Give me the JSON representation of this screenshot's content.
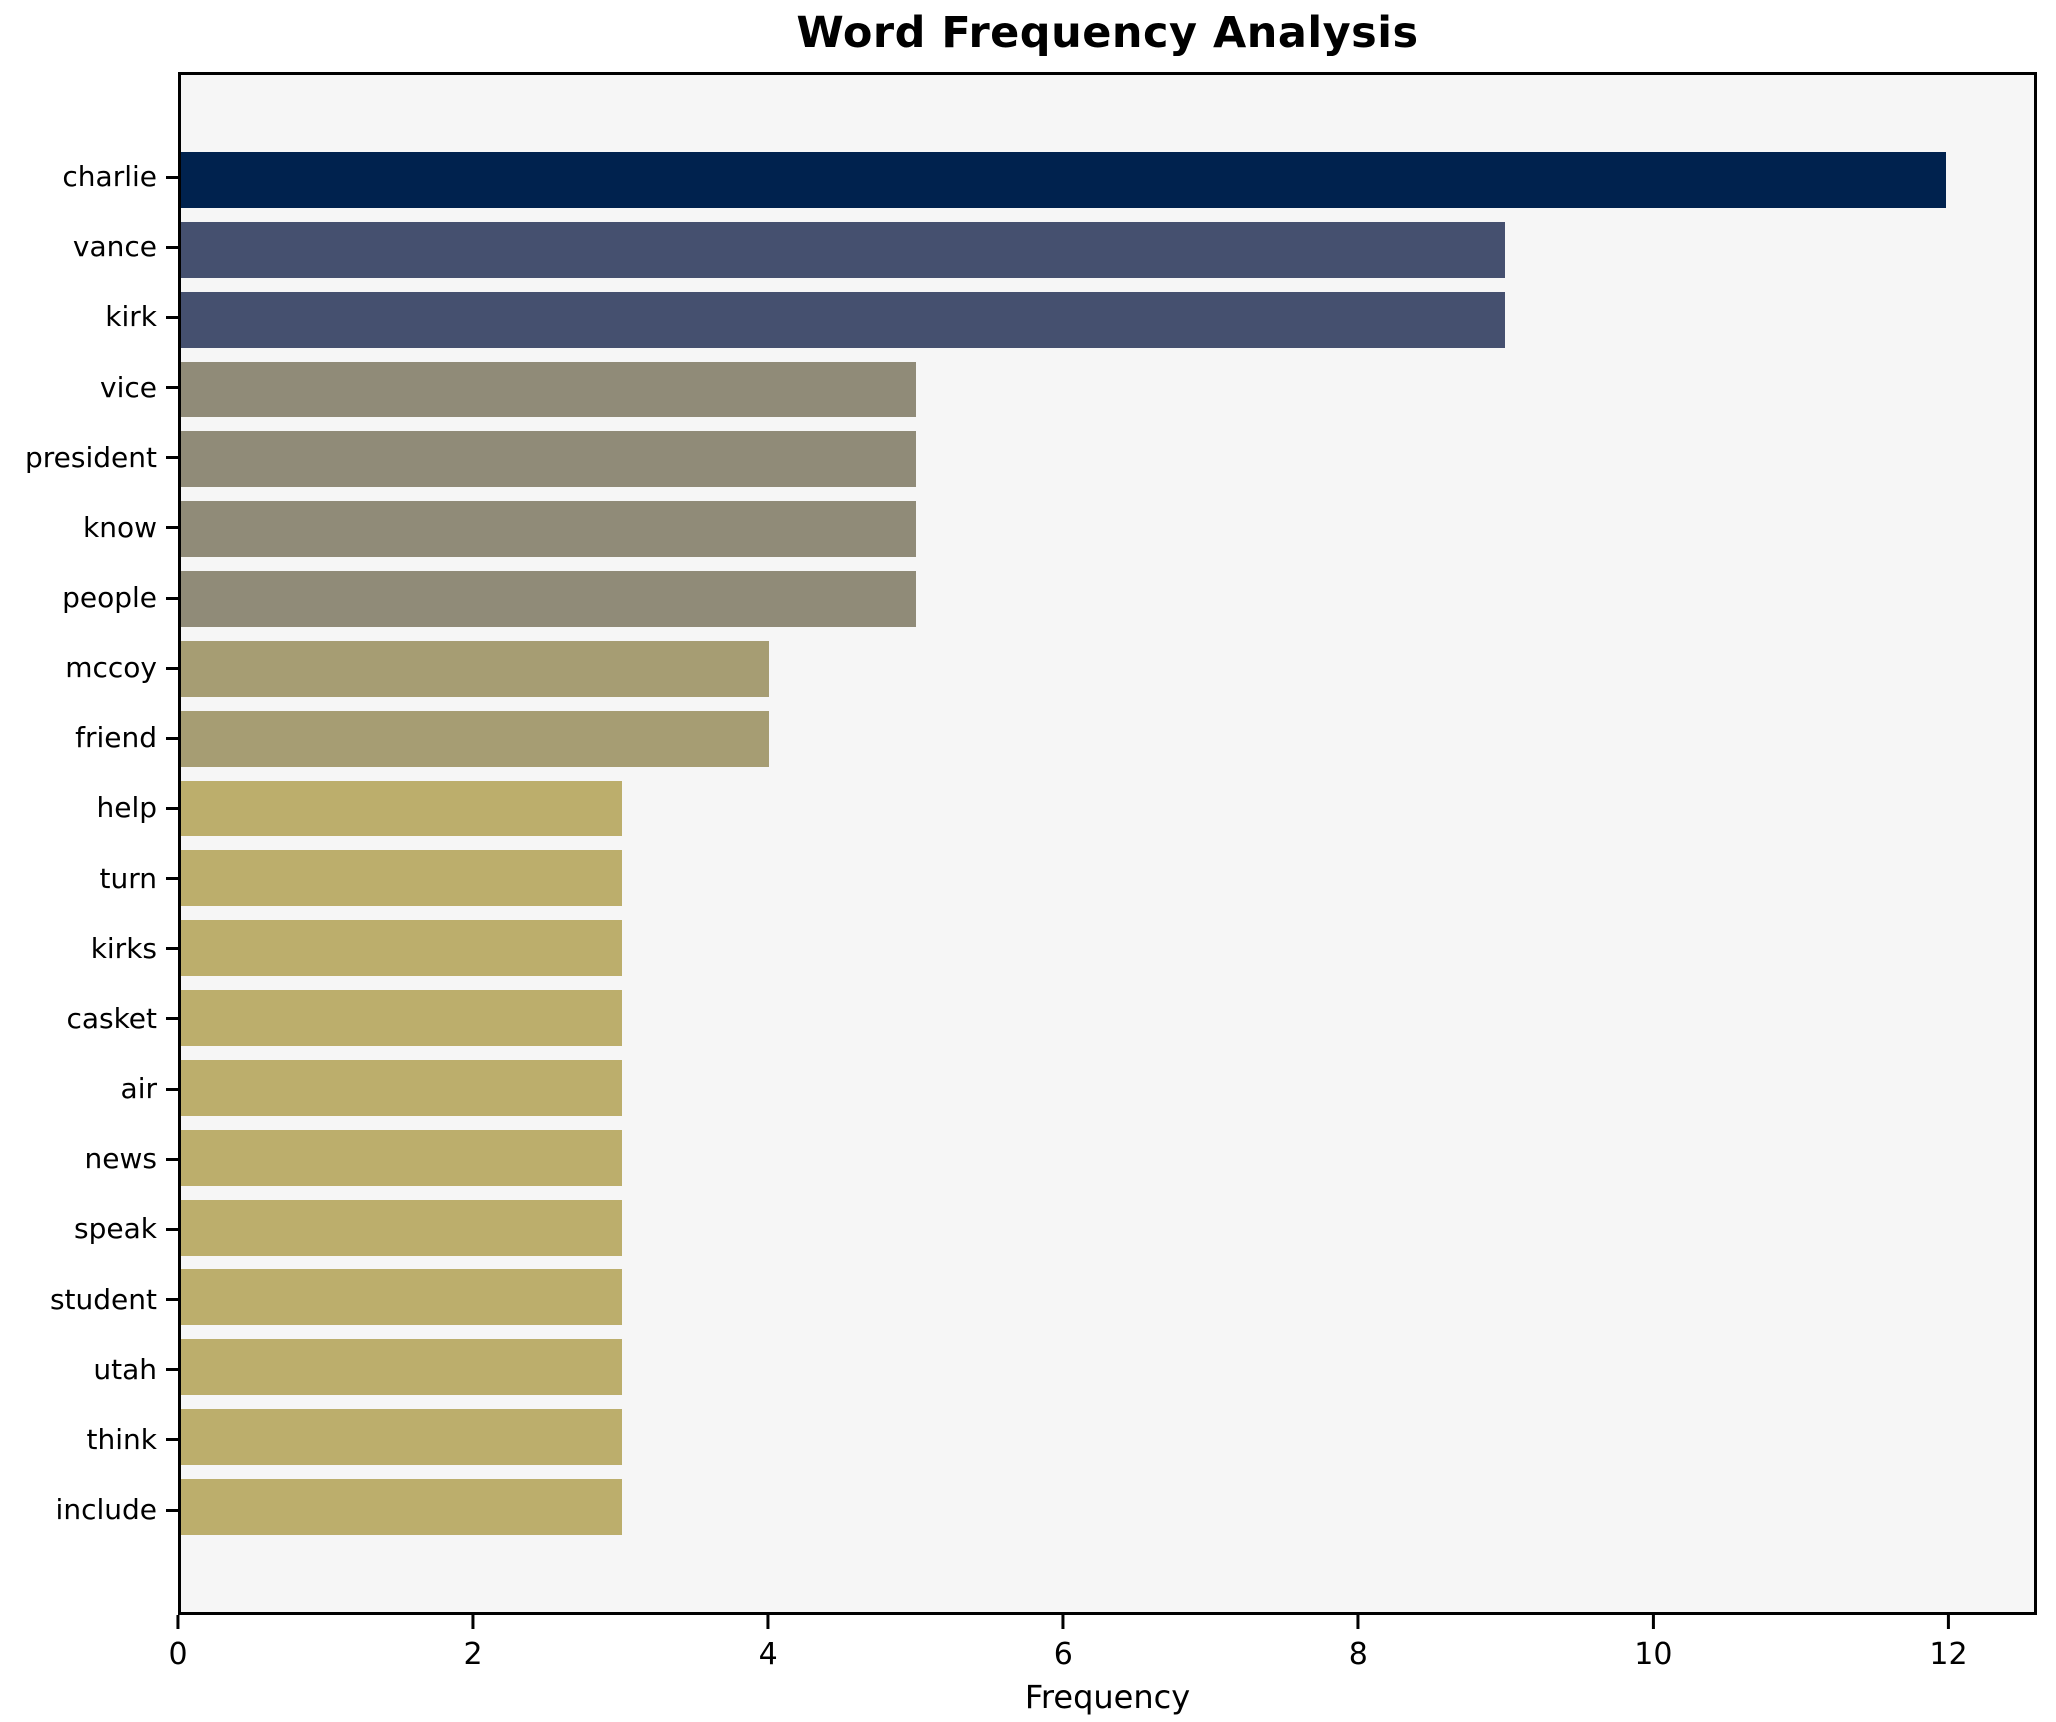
{
  "chart_data": {
    "type": "bar",
    "orientation": "horizontal",
    "title": "Word Frequency Analysis",
    "xlabel": "Frequency",
    "ylabel": "",
    "categories": [
      "charlie",
      "vance",
      "kirk",
      "vice",
      "president",
      "know",
      "people",
      "mccoy",
      "friend",
      "help",
      "turn",
      "kirks",
      "casket",
      "air",
      "news",
      "speak",
      "student",
      "utah",
      "think",
      "include"
    ],
    "values": [
      12,
      9,
      9,
      5,
      5,
      5,
      5,
      4,
      4,
      3,
      3,
      3,
      3,
      3,
      3,
      3,
      3,
      3,
      3,
      3
    ],
    "bar_colors": [
      "#00224e",
      "#45506f",
      "#45506f",
      "#908b78",
      "#908b78",
      "#908b78",
      "#908b78",
      "#a69d73",
      "#a69d73",
      "#bcae6c",
      "#bcae6c",
      "#bcae6c",
      "#bcae6c",
      "#bcae6c",
      "#bcae6c",
      "#bcae6c",
      "#bcae6c",
      "#bcae6c",
      "#bcae6c",
      "#bcae6c"
    ],
    "xticks": [
      0,
      2,
      4,
      6,
      8,
      10,
      12
    ],
    "xlim": [
      0,
      12.6
    ],
    "grid": false,
    "legend": "none",
    "plot_background": "#f6f6f6",
    "figure_background": "#ffffff",
    "spine_color": "#000000",
    "text_color": "#000000"
  }
}
